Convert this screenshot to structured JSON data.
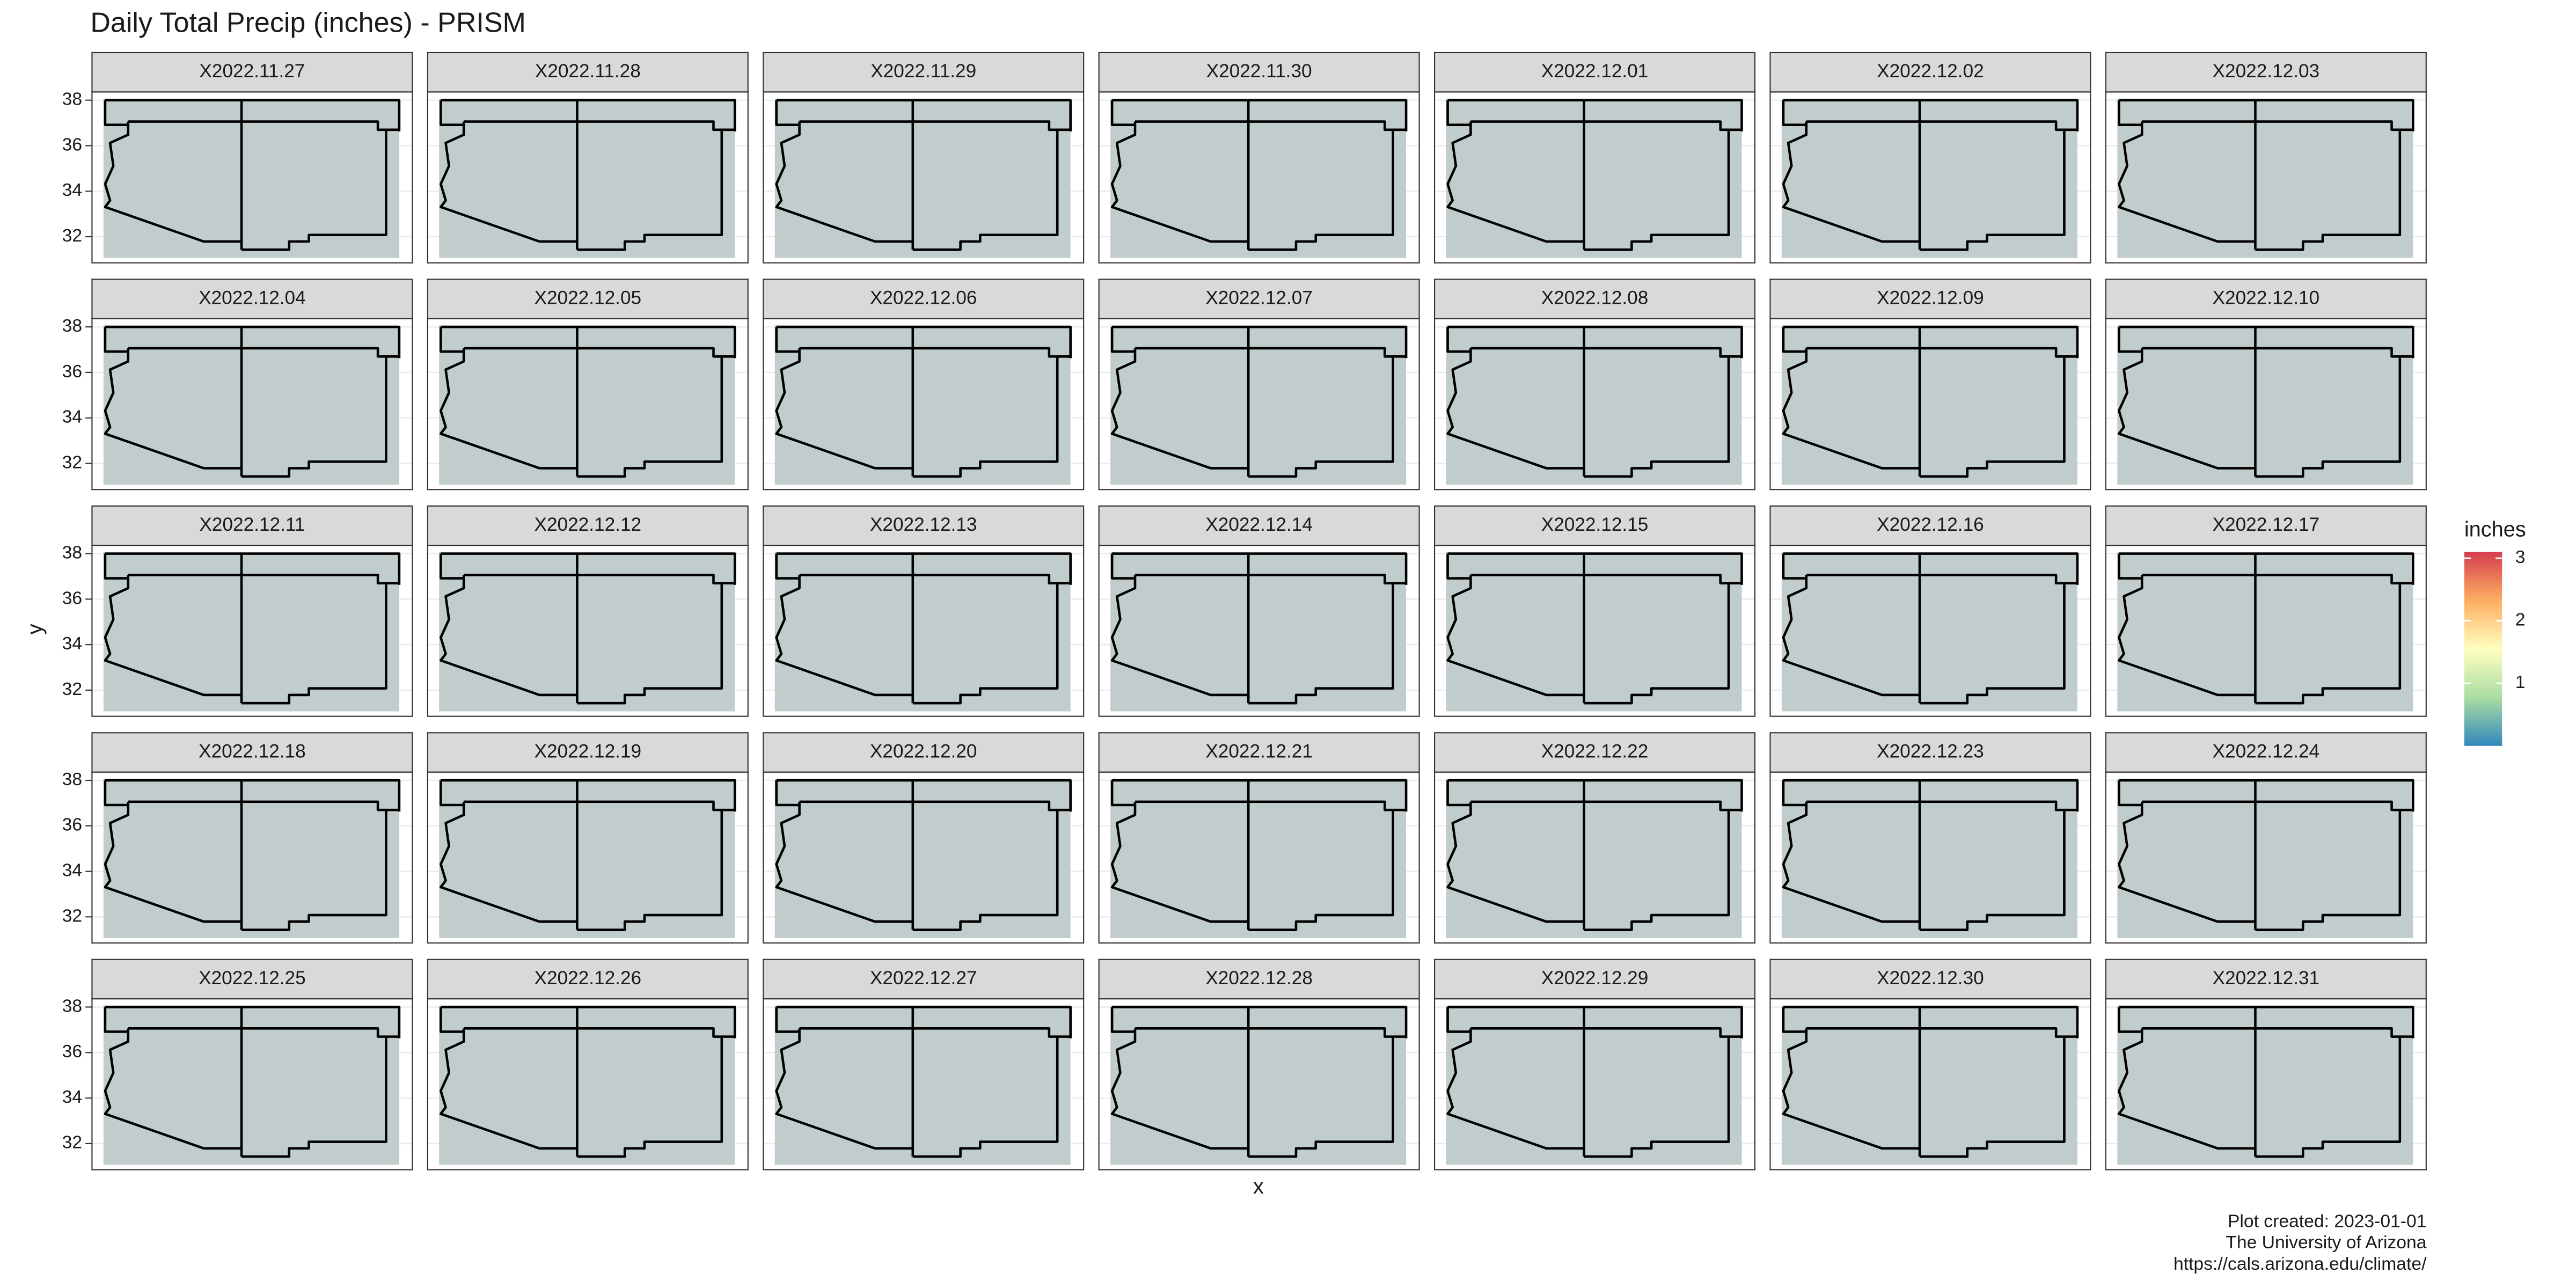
{
  "chart_data": {
    "type": "raster_map_facets",
    "title": "Daily Total Precip (inches) - PRISM",
    "facets": [
      "X2022.11.27",
      "X2022.11.28",
      "X2022.11.29",
      "X2022.11.30",
      "X2022.12.01",
      "X2022.12.02",
      "X2022.12.03",
      "X2022.12.04",
      "X2022.12.05",
      "X2022.12.06",
      "X2022.12.07",
      "X2022.12.08",
      "X2022.12.09",
      "X2022.12.10",
      "X2022.12.11",
      "X2022.12.12",
      "X2022.12.13",
      "X2022.12.14",
      "X2022.12.15",
      "X2022.12.16",
      "X2022.12.17",
      "X2022.12.18",
      "X2022.12.19",
      "X2022.12.20",
      "X2022.12.21",
      "X2022.12.22",
      "X2022.12.23",
      "X2022.12.24",
      "X2022.12.25",
      "X2022.12.26",
      "X2022.12.27",
      "X2022.12.28",
      "X2022.12.29",
      "X2022.12.30",
      "X2022.12.31"
    ],
    "x_label": "x",
    "y_label": "y",
    "ylim": [
      30.85,
      38.36
    ],
    "yticks": [
      32,
      34,
      36,
      38
    ],
    "grid": true,
    "legend": {
      "title": "inches",
      "lim": [
        0,
        3.1
      ],
      "ticks": [
        1,
        2,
        3
      ],
      "colors": [
        "#3288bd",
        "#abdda4",
        "#ffffbf",
        "#fdae61",
        "#d53e4f"
      ]
    },
    "caption": [
      "Plot created: 2023-01-01",
      "The University of Arizona",
      "https://cals.arizona.edu/climate/"
    ]
  }
}
